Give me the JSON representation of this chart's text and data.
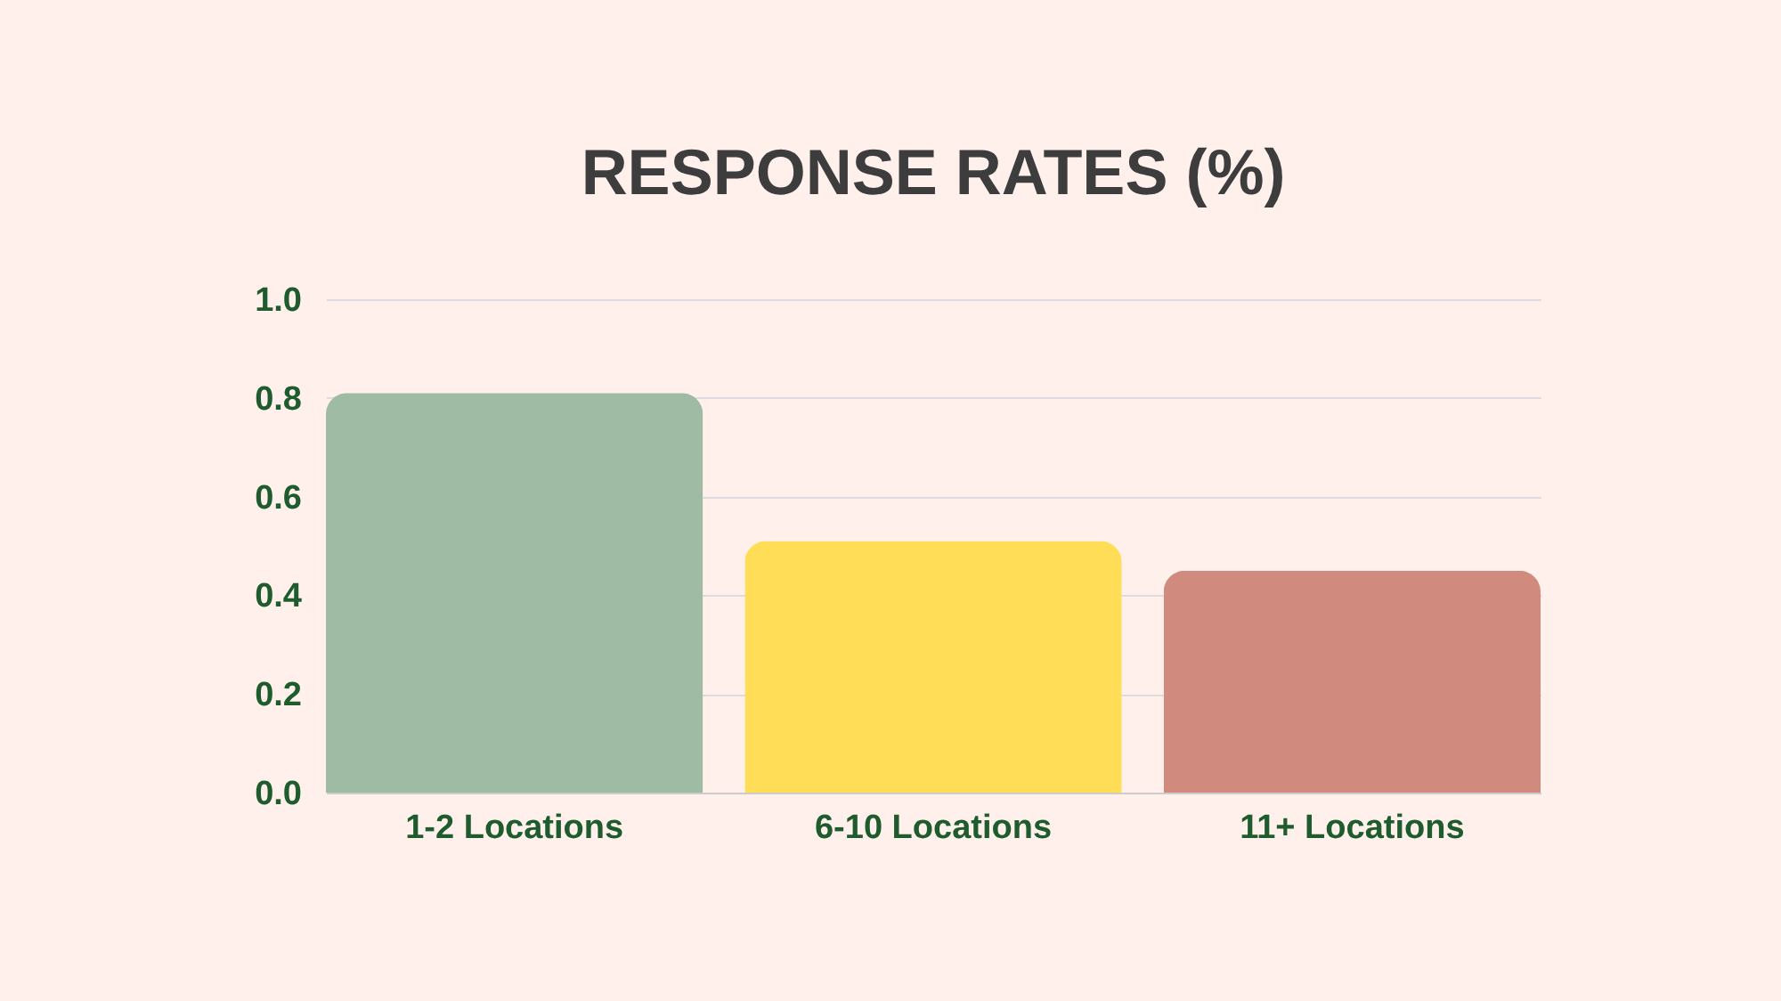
{
  "chart_data": {
    "type": "bar",
    "title": "RESPONSE RATES (%)",
    "categories": [
      "1-2 Locations",
      "6-10 Locations",
      "11+ Locations"
    ],
    "values": [
      0.81,
      0.51,
      0.45
    ],
    "colors": [
      "#9fbba3",
      "#ffdd57",
      "#d08b7e"
    ],
    "ylim": [
      0,
      1
    ],
    "yticks": [
      {
        "value": 0,
        "label": "0.0"
      },
      0.2,
      0.4,
      0.6,
      0.8,
      {
        "value": 1,
        "label": "1.0"
      }
    ],
    "grid": "y"
  }
}
